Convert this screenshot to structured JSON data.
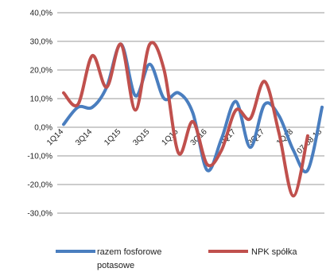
{
  "chart_data": {
    "type": "line",
    "ylim": [
      -30,
      40
    ],
    "y_ticks": [
      "40,0%",
      "30,0%",
      "20,0%",
      "10,0%",
      "0,0%",
      "-10,0%",
      "-20,0%",
      "-30,0%"
    ],
    "y_tick_values": [
      40,
      30,
      20,
      10,
      0,
      -10,
      -20,
      -30
    ],
    "x_tick_labels": [
      "1Q14",
      "3Q14",
      "1Q15",
      "3Q15",
      "1Q16",
      "3Q16",
      "1Q17",
      "3Q17",
      "1Q18",
      "07-08.18"
    ],
    "x": [
      "1Q14",
      "2Q14",
      "3Q14",
      "4Q14",
      "1Q15",
      "2Q15",
      "3Q15",
      "4Q15",
      "1Q16",
      "2Q16",
      "3Q16",
      "4Q16",
      "1Q17",
      "2Q17",
      "3Q17",
      "4Q17",
      "1Q18",
      "2Q18",
      "07-08.18"
    ],
    "series": [
      {
        "name": "razem fosforowe potasowe",
        "color": "#4a7ebf",
        "values": [
          1,
          7,
          7,
          14,
          29,
          11,
          22,
          10,
          12,
          5,
          -15,
          -4,
          9,
          -7,
          8,
          4,
          -8,
          -15,
          7
        ]
      },
      {
        "name": "NPK spółka",
        "color": "#c0504d",
        "values": [
          12,
          8,
          25,
          14,
          29,
          6,
          29,
          20,
          -9,
          2,
          -13,
          -8,
          6,
          3,
          16,
          -2,
          -24,
          -3,
          null
        ]
      }
    ],
    "grid": "horizontal",
    "legend_position": "bottom"
  },
  "legend": {
    "series1_line1": "razem fosforowe",
    "series1_line2": "potasowe",
    "series2": "NPK spółka"
  }
}
